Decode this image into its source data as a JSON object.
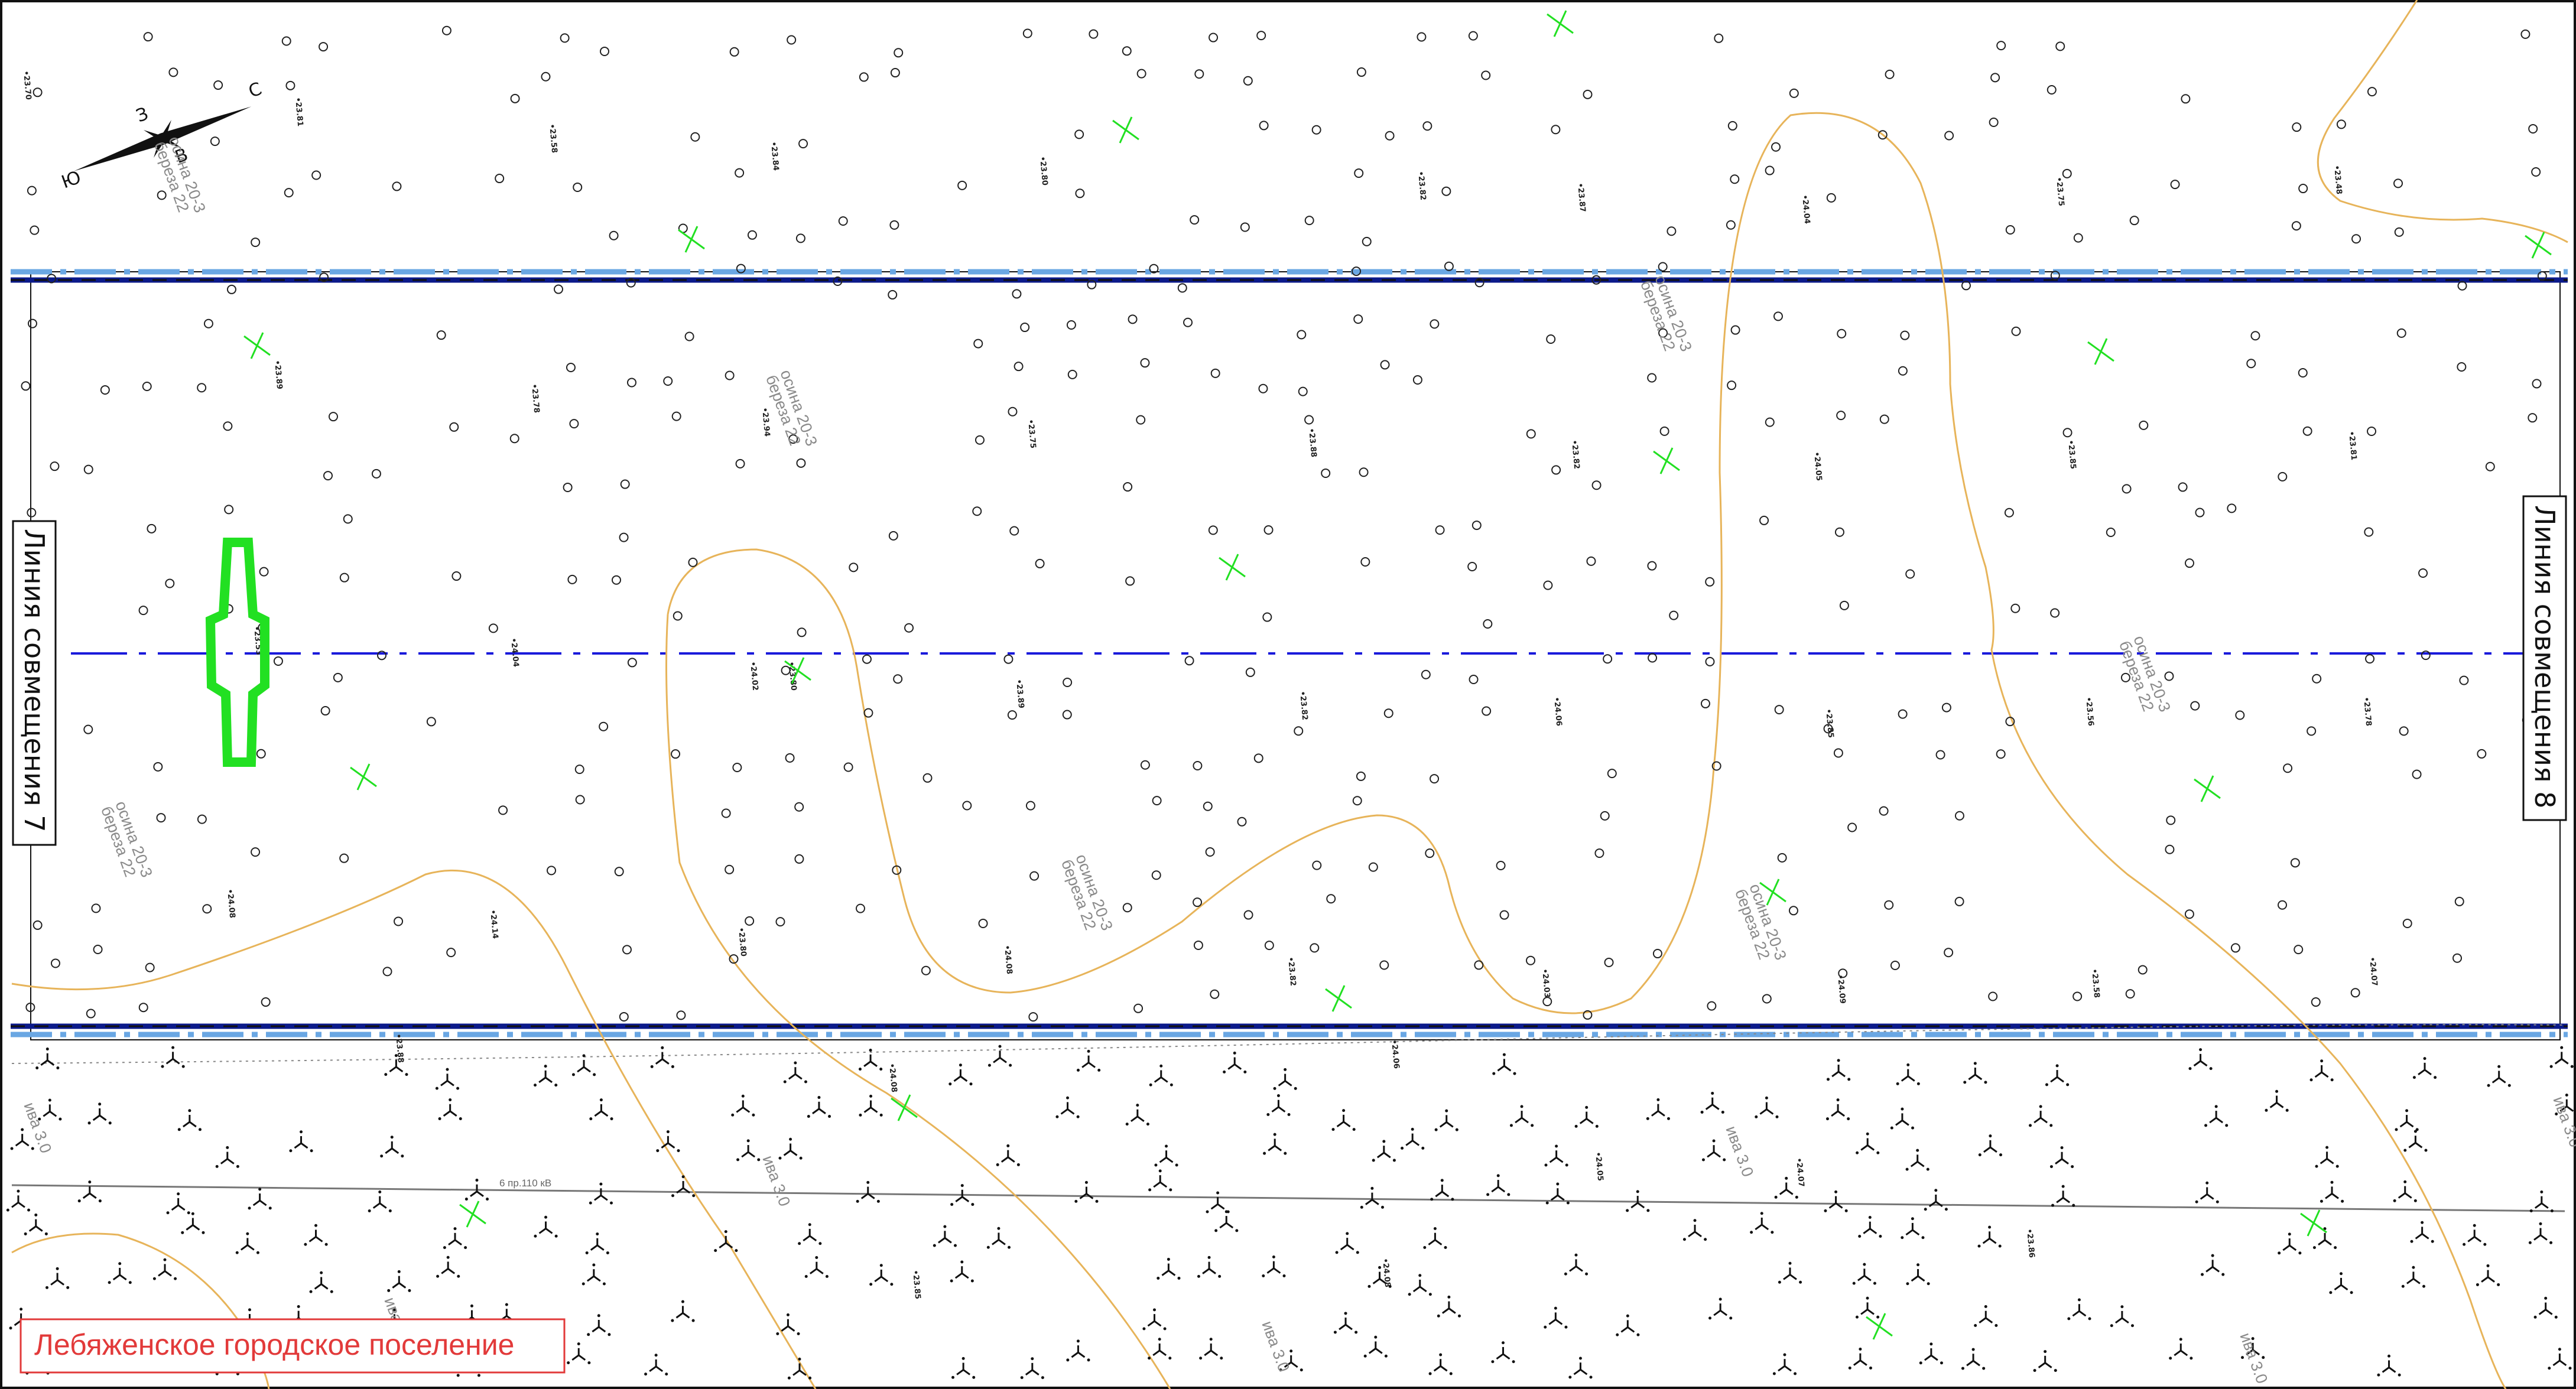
{
  "side_labels": {
    "left": "Линия совмещения 7",
    "right": "Линия совмещения 8"
  },
  "settlement_label": "Лебяженское городское поселение",
  "compass": {
    "north": "С",
    "south": "Ю",
    "east": "В",
    "west": "З"
  },
  "vegetation_label": {
    "line1": "осина 20-3",
    "line2": "береза 22"
  },
  "swamp_label": "ива 3.0",
  "power_line_label": "6 пр.110 кВ",
  "elevations": [
    "23.70",
    "23.81",
    "23.58",
    "23.84",
    "23.80",
    "23.82",
    "23.87",
    "24.04",
    "23.75",
    "23.48",
    "23.89",
    "23.78",
    "23.94",
    "23.75",
    "23.88",
    "23.82",
    "24.05",
    "23.85",
    "23.81",
    "23.53",
    "24.04",
    "24.02",
    "23.80",
    "23.89",
    "23.82",
    "24.06",
    "23.85",
    "23.56",
    "23.78",
    "24.08",
    "24.14",
    "23.80",
    "24.08",
    "23.82",
    "24.03",
    "24.09",
    "23.58",
    "24.07",
    "23.88",
    "24.08",
    "24.06",
    "24.05",
    "24.07",
    "23.86",
    "24.08",
    "23.85"
  ],
  "colors": {
    "axis_blue": "#1a1adb",
    "boundary_dark": "#0b1a8a",
    "boundary_light": "#6aa7e3",
    "contour": "#e7b45a",
    "green_mark": "#22e022",
    "settlement_red": "#e23a3a"
  }
}
